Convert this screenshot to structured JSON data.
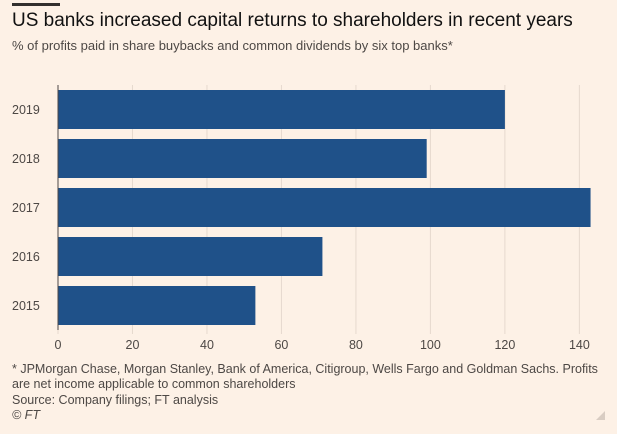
{
  "header": {
    "title": "US banks increased capital returns to shareholders in recent years",
    "subtitle": "% of profits paid in share buybacks and common dividends by six top banks*"
  },
  "footer": {
    "footnote": "* JPMorgan Chase, Morgan Stanley, Bank of America, Citigroup, Wells Fargo and Goldman Sachs. Profits are net income applicable to common shareholders",
    "source": "Source: Company filings; FT analysis",
    "credit": "© FT"
  },
  "colors": {
    "background": "#fdf1e6",
    "bar": "#1f5189",
    "grid": "#e6d9ce",
    "text": "#33302e"
  },
  "chart_data": {
    "type": "bar",
    "orientation": "horizontal",
    "categories": [
      "2019",
      "2018",
      "2017",
      "2016",
      "2015"
    ],
    "values": [
      120,
      99,
      143,
      71,
      53
    ],
    "xlim": [
      0,
      145
    ],
    "xticks": [
      0,
      20,
      40,
      60,
      80,
      100,
      120,
      140
    ],
    "grid": "vertical",
    "legend": "none"
  }
}
